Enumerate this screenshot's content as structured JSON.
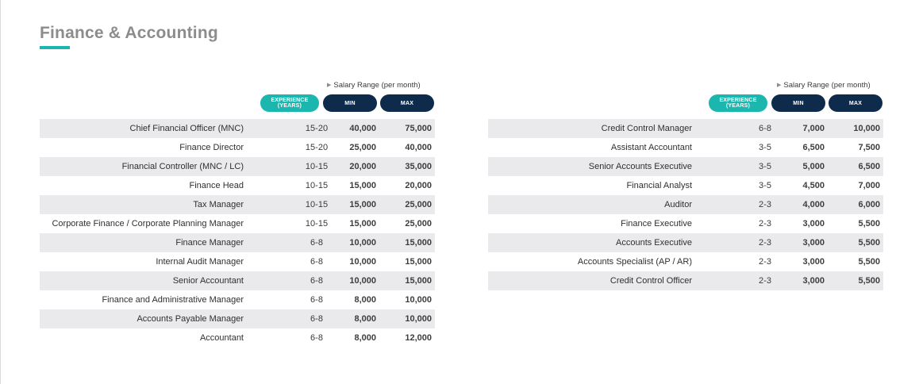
{
  "page": {
    "title": "Finance & Accounting"
  },
  "header": {
    "range_label": "Salary Range (per month)",
    "exp_line1": "EXPERIENCE",
    "exp_line2": "(YEARS)",
    "min": "MIN",
    "max": "MAX"
  },
  "colors": {
    "accent": "#1bb6ad",
    "navy": "#0f2b4c",
    "stripe": "#eaeaec",
    "title": "#8c8c8c"
  },
  "left_table": [
    {
      "title": "Chief Financial Officer (MNC)",
      "exp": "15-20",
      "min": "40,000",
      "max": "75,000"
    },
    {
      "title": "Finance Director",
      "exp": "15-20",
      "min": "25,000",
      "max": "40,000"
    },
    {
      "title": "Financial Controller (MNC / LC)",
      "exp": "10-15",
      "min": "20,000",
      "max": "35,000"
    },
    {
      "title": "Finance Head",
      "exp": "10-15",
      "min": "15,000",
      "max": "20,000"
    },
    {
      "title": "Tax Manager",
      "exp": "10-15",
      "min": "15,000",
      "max": "25,000"
    },
    {
      "title": "Corporate Finance / Corporate Planning Manager",
      "exp": "10-15",
      "min": "15,000",
      "max": "25,000"
    },
    {
      "title": "Finance Manager",
      "exp": "6-8",
      "min": "10,000",
      "max": "15,000"
    },
    {
      "title": "Internal Audit Manager",
      "exp": "6-8",
      "min": "10,000",
      "max": "15,000"
    },
    {
      "title": "Senior Accountant",
      "exp": "6-8",
      "min": "10,000",
      "max": "15,000"
    },
    {
      "title": "Finance and Administrative Manager",
      "exp": "6-8",
      "min": "8,000",
      "max": "10,000"
    },
    {
      "title": "Accounts Payable Manager",
      "exp": "6-8",
      "min": "8,000",
      "max": "10,000"
    },
    {
      "title": "Accountant",
      "exp": "6-8",
      "min": "8,000",
      "max": "12,000"
    }
  ],
  "right_table": [
    {
      "title": "Credit Control Manager",
      "exp": "6-8",
      "min": "7,000",
      "max": "10,000"
    },
    {
      "title": "Assistant Accountant",
      "exp": "3-5",
      "min": "6,500",
      "max": "7,500"
    },
    {
      "title": "Senior Accounts Executive",
      "exp": "3-5",
      "min": "5,000",
      "max": "6,500"
    },
    {
      "title": "Financial Analyst",
      "exp": "3-5",
      "min": "4,500",
      "max": "7,000"
    },
    {
      "title": "Auditor",
      "exp": "2-3",
      "min": "4,000",
      "max": "6,000"
    },
    {
      "title": "Finance Executive",
      "exp": "2-3",
      "min": "3,000",
      "max": "5,500"
    },
    {
      "title": "Accounts Executive",
      "exp": "2-3",
      "min": "3,000",
      "max": "5,500"
    },
    {
      "title": "Accounts Specialist (AP / AR)",
      "exp": "2-3",
      "min": "3,000",
      "max": "5,500"
    },
    {
      "title": "Credit Control Officer",
      "exp": "2-3",
      "min": "3,000",
      "max": "5,500"
    }
  ]
}
